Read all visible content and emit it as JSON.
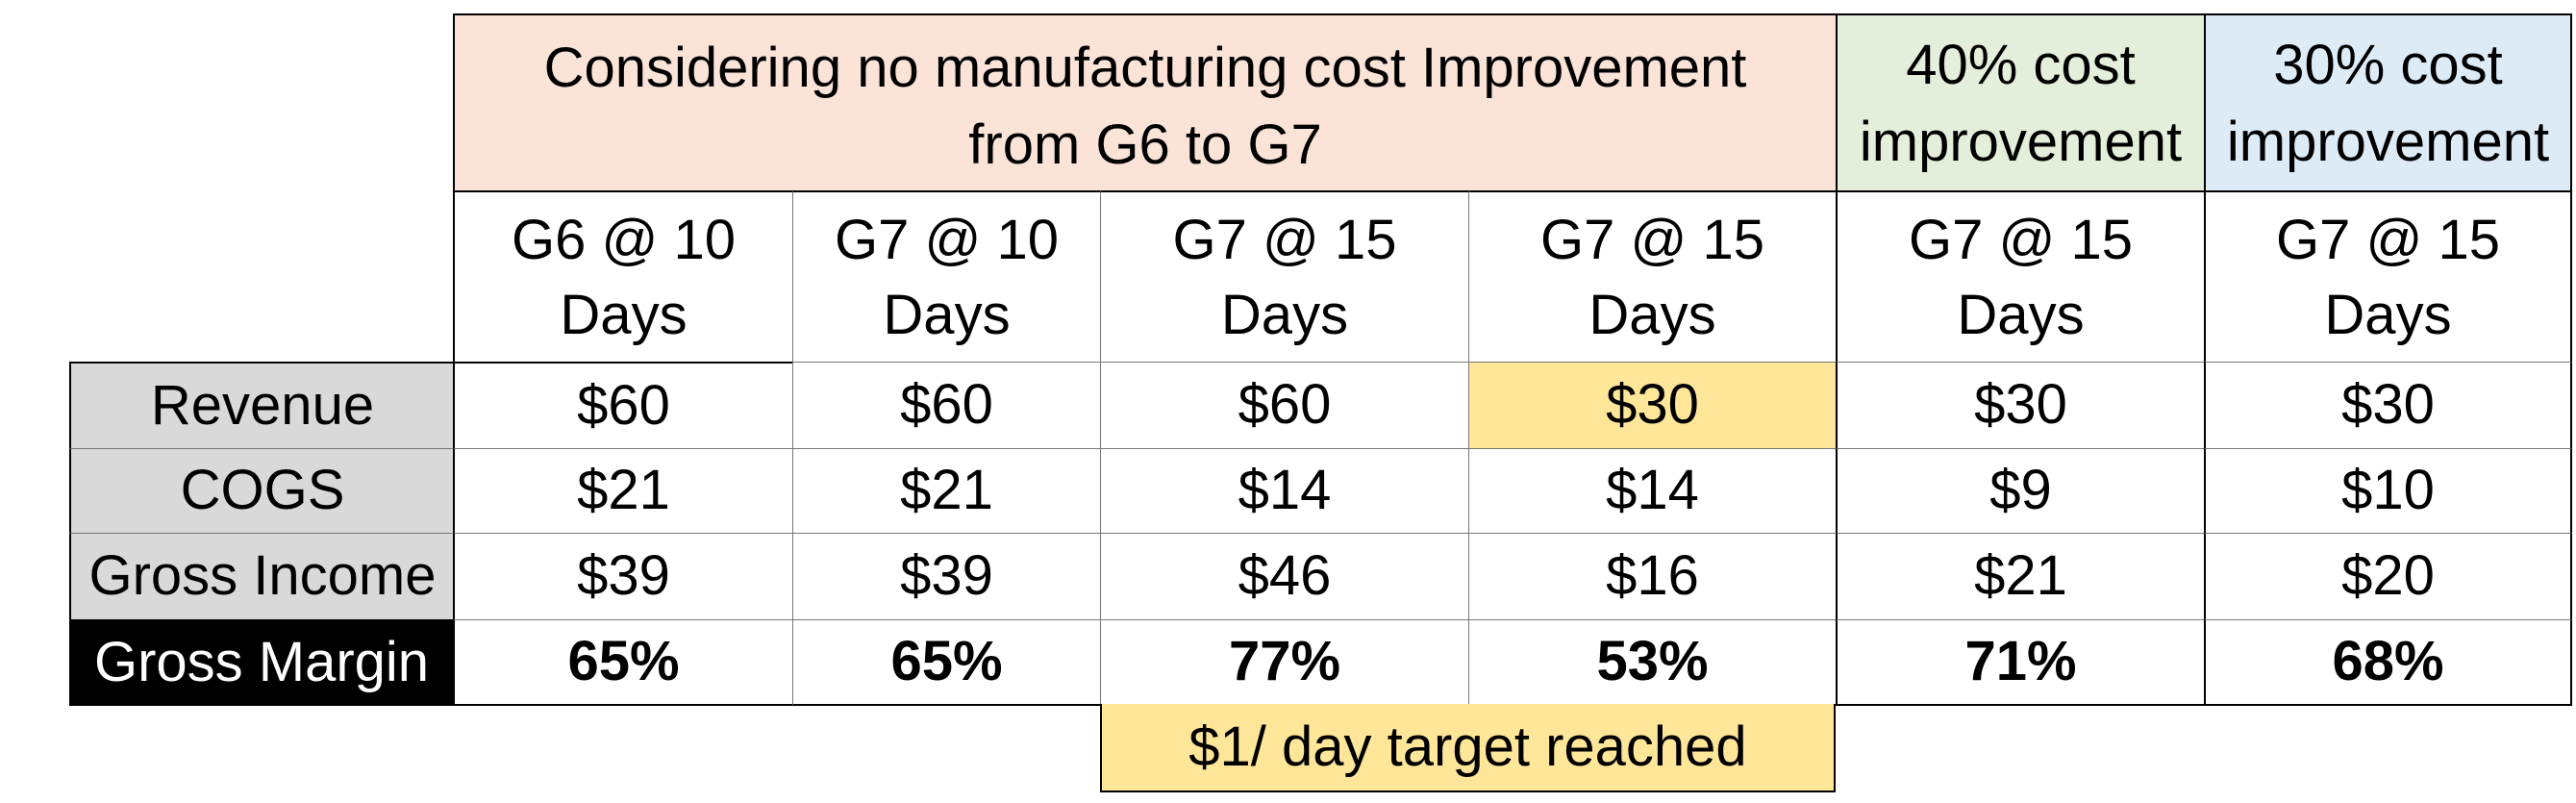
{
  "header_groups": [
    {
      "text": "Considering no manufacturing cost Improvement from G6 to G7",
      "color": "#fbe3d8"
    },
    {
      "text": "40% cost improvement",
      "color": "#e3efda"
    },
    {
      "text": "30% cost improvement",
      "color": "#ddebf7"
    }
  ],
  "columns": [
    {
      "line1": "G6 @ 10",
      "line2": "Days"
    },
    {
      "line1": "G7 @ 10",
      "line2": "Days"
    },
    {
      "line1": "G7 @ 15",
      "line2": "Days"
    },
    {
      "line1": "G7 @ 15",
      "line2": "Days"
    },
    {
      "line1": "G7 @ 15",
      "line2": "Days"
    },
    {
      "line1": "G7 @ 15",
      "line2": "Days"
    }
  ],
  "rows": [
    {
      "label": "Revenue",
      "values": [
        "$60",
        "$60",
        "$60",
        "$30",
        "$30",
        "$30"
      ]
    },
    {
      "label": "COGS",
      "values": [
        "$21",
        "$21",
        "$14",
        "$14",
        "$9",
        "$10"
      ]
    },
    {
      "label": "Gross Income",
      "values": [
        "$39",
        "$39",
        "$46",
        "$16",
        "$21",
        "$20"
      ]
    },
    {
      "label": "Gross Margin",
      "values": [
        "65%",
        "65%",
        "77%",
        "53%",
        "71%",
        "68%"
      ]
    }
  ],
  "footer_note": "$1/ day target reached",
  "highlight_color": "#ffe699"
}
